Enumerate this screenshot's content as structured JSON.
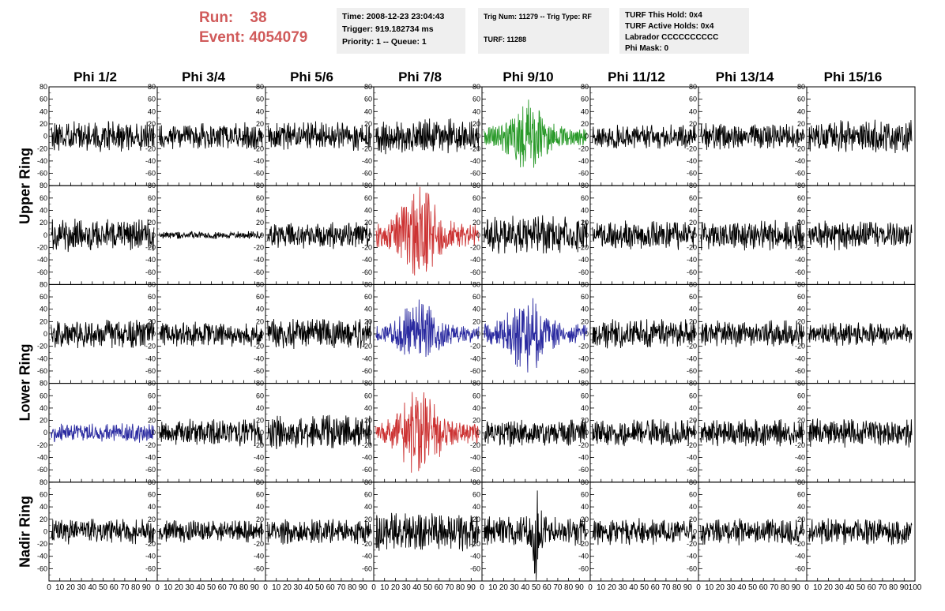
{
  "header": {
    "run_label": "Run:",
    "run_value": "38",
    "event_label": "Event:",
    "event_value": "4054079",
    "time": "Time: 2008-12-23 23:04:43",
    "trigger": "Trigger: 919.182734 ms",
    "priority": "Priority: 1 -- Queue: 1",
    "trig_num": "Trig Num: 11279 -- Trig Type: RF",
    "turf": "TURF: 11288",
    "turf_hold": "TURF This Hold: 0x4",
    "turf_active": "TURF Active Holds: 0x4",
    "labrador": "Labrador CCCCCCCCCC",
    "phi_mask": "Phi Mask: 0"
  },
  "columns": [
    "Phi 1/2",
    "Phi 3/4",
    "Phi 5/6",
    "Phi 7/8",
    "Phi 9/10",
    "Phi 11/12",
    "Phi 13/14",
    "Phi 15/16"
  ],
  "ring_labels": [
    {
      "label": "Upper Ring",
      "rows": [
        0,
        1
      ]
    },
    {
      "label": "Lower Ring",
      "rows": [
        2,
        3
      ]
    },
    {
      "label": "Nadir Ring",
      "rows": [
        4
      ]
    }
  ],
  "chart_data": {
    "type": "line",
    "description_axes": "grid of waveform panels, 5 rows x 8 columns",
    "xlim": [
      0,
      100
    ],
    "ylim": [
      -80,
      80
    ],
    "x_ticks": [
      0,
      10,
      20,
      30,
      40,
      50,
      60,
      70,
      80,
      90,
      100
    ],
    "y_ticks": [
      -60,
      -40,
      -20,
      0,
      20,
      40,
      60,
      80
    ],
    "colors": {
      "default": "#000000",
      "green": "#2a9a2a",
      "red": "#cc3333",
      "blue": "#2a2aa0"
    },
    "panels": [
      {
        "row": 0,
        "col": 0,
        "color": "default",
        "amp": 16,
        "env": "flat",
        "seed": 11
      },
      {
        "row": 0,
        "col": 1,
        "color": "default",
        "amp": 14,
        "env": "flat",
        "seed": 12
      },
      {
        "row": 0,
        "col": 2,
        "color": "default",
        "amp": 15,
        "env": "flat",
        "seed": 13
      },
      {
        "row": 0,
        "col": 3,
        "color": "default",
        "amp": 18,
        "env": "flat",
        "seed": 14
      },
      {
        "row": 0,
        "col": 4,
        "color": "green",
        "amp": 28,
        "env": "pulse",
        "seed": 15
      },
      {
        "row": 0,
        "col": 5,
        "color": "default",
        "amp": 13,
        "env": "flat",
        "seed": 16
      },
      {
        "row": 0,
        "col": 6,
        "color": "default",
        "amp": 14,
        "env": "flat",
        "seed": 17
      },
      {
        "row": 0,
        "col": 7,
        "color": "default",
        "amp": 17,
        "env": "flat",
        "seed": 18
      },
      {
        "row": 1,
        "col": 0,
        "color": "default",
        "amp": 17,
        "env": "flat",
        "seed": 21
      },
      {
        "row": 1,
        "col": 1,
        "color": "default",
        "amp": 4,
        "env": "flat",
        "seed": 22
      },
      {
        "row": 1,
        "col": 2,
        "color": "default",
        "amp": 14,
        "env": "flat",
        "seed": 23
      },
      {
        "row": 1,
        "col": 3,
        "color": "red",
        "amp": 38,
        "env": "pulse",
        "seed": 24
      },
      {
        "row": 1,
        "col": 4,
        "color": "default",
        "amp": 20,
        "env": "flat",
        "seed": 25
      },
      {
        "row": 1,
        "col": 5,
        "color": "default",
        "amp": 15,
        "env": "flat",
        "seed": 26
      },
      {
        "row": 1,
        "col": 6,
        "color": "default",
        "amp": 16,
        "env": "flat",
        "seed": 27
      },
      {
        "row": 1,
        "col": 7,
        "color": "default",
        "amp": 16,
        "env": "flat",
        "seed": 28
      },
      {
        "row": 2,
        "col": 0,
        "color": "default",
        "amp": 15,
        "env": "flat",
        "seed": 31
      },
      {
        "row": 2,
        "col": 1,
        "color": "default",
        "amp": 13,
        "env": "flat",
        "seed": 32
      },
      {
        "row": 2,
        "col": 2,
        "color": "default",
        "amp": 16,
        "env": "flat",
        "seed": 33
      },
      {
        "row": 2,
        "col": 3,
        "color": "blue",
        "amp": 26,
        "env": "pulse",
        "seed": 34
      },
      {
        "row": 2,
        "col": 4,
        "color": "blue",
        "amp": 30,
        "env": "pulse",
        "seed": 35
      },
      {
        "row": 2,
        "col": 5,
        "color": "default",
        "amp": 15,
        "env": "flat",
        "seed": 36
      },
      {
        "row": 2,
        "col": 6,
        "color": "default",
        "amp": 14,
        "env": "flat",
        "seed": 37
      },
      {
        "row": 2,
        "col": 7,
        "color": "default",
        "amp": 12,
        "env": "flat",
        "seed": 38
      },
      {
        "row": 3,
        "col": 0,
        "color": "blue",
        "amp": 10,
        "env": "flat",
        "seed": 41
      },
      {
        "row": 3,
        "col": 1,
        "color": "default",
        "amp": 14,
        "env": "flat",
        "seed": 42
      },
      {
        "row": 3,
        "col": 2,
        "color": "default",
        "amp": 18,
        "env": "flat",
        "seed": 43
      },
      {
        "row": 3,
        "col": 3,
        "color": "red",
        "amp": 34,
        "env": "pulse",
        "seed": 44
      },
      {
        "row": 3,
        "col": 4,
        "color": "default",
        "amp": 15,
        "env": "flat",
        "seed": 45
      },
      {
        "row": 3,
        "col": 5,
        "color": "default",
        "amp": 14,
        "env": "flat",
        "seed": 46
      },
      {
        "row": 3,
        "col": 6,
        "color": "default",
        "amp": 14,
        "env": "flat",
        "seed": 47
      },
      {
        "row": 3,
        "col": 7,
        "color": "default",
        "amp": 15,
        "env": "flat",
        "seed": 48
      },
      {
        "row": 4,
        "col": 0,
        "color": "default",
        "amp": 13,
        "env": "flat",
        "seed": 51
      },
      {
        "row": 4,
        "col": 1,
        "color": "default",
        "amp": 12,
        "env": "flat",
        "seed": 52
      },
      {
        "row": 4,
        "col": 2,
        "color": "default",
        "amp": 13,
        "env": "flat",
        "seed": 53
      },
      {
        "row": 4,
        "col": 3,
        "color": "default",
        "amp": 20,
        "env": "flat",
        "seed": 54
      },
      {
        "row": 4,
        "col": 4,
        "color": "default",
        "amp": 22,
        "env": "spike",
        "seed": 55
      },
      {
        "row": 4,
        "col": 5,
        "color": "default",
        "amp": 14,
        "env": "flat",
        "seed": 56
      },
      {
        "row": 4,
        "col": 6,
        "color": "default",
        "amp": 14,
        "env": "flat",
        "seed": 57
      },
      {
        "row": 4,
        "col": 7,
        "color": "default",
        "amp": 14,
        "env": "flat",
        "seed": 58
      }
    ]
  }
}
